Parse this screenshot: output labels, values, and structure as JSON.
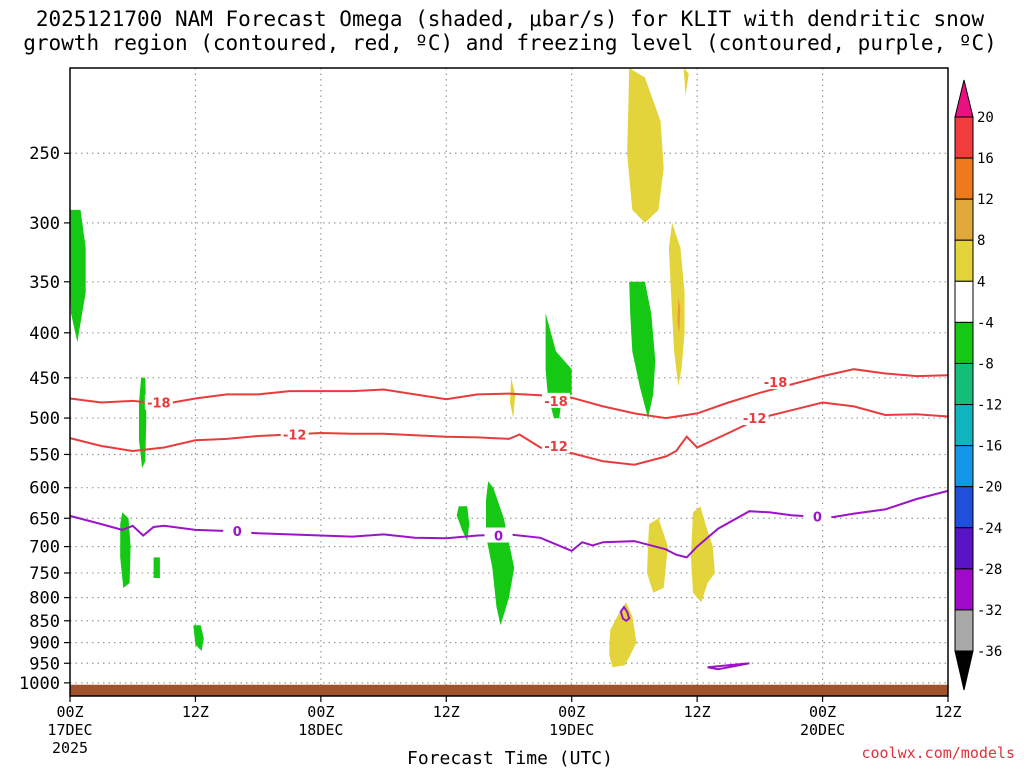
{
  "title": {
    "line1": "2025121700 NAM Forecast Omega (shaded, μbar/s) for KLIT with dendritic snow",
    "line2": "growth region (contoured, red, ºC) and freezing level (contoured, purple, ºC)"
  },
  "credit": "coolwx.com/models",
  "chart_data": {
    "type": "contour",
    "xlabel": "Forecast Time (UTC)",
    "x_range_hours": [
      0,
      84
    ],
    "x_ticks": [
      {
        "hour": 0,
        "line1": "00Z",
        "line2": "17DEC",
        "line3": "2025"
      },
      {
        "hour": 12,
        "line1": "12Z",
        "line2": "",
        "line3": ""
      },
      {
        "hour": 24,
        "line1": "00Z",
        "line2": "18DEC",
        "line3": ""
      },
      {
        "hour": 36,
        "line1": "12Z",
        "line2": "",
        "line3": ""
      },
      {
        "hour": 48,
        "line1": "00Z",
        "line2": "19DEC",
        "line3": ""
      },
      {
        "hour": 60,
        "line1": "12Z",
        "line2": "",
        "line3": ""
      },
      {
        "hour": 72,
        "line1": "00Z",
        "line2": "20DEC",
        "line3": ""
      },
      {
        "hour": 84,
        "line1": "12Z",
        "line2": "",
        "line3": ""
      }
    ],
    "y_scale": "log-pressure",
    "y_range_hpa": [
      1035,
      200
    ],
    "y_ticks": [
      250,
      300,
      350,
      400,
      450,
      500,
      550,
      600,
      650,
      700,
      750,
      800,
      850,
      900,
      950,
      1000
    ],
    "grid": true,
    "colorbar": {
      "levels": [
        "20",
        "16",
        "12",
        "8",
        "4",
        "-4",
        "-8",
        "-12",
        "-16",
        "-20",
        "-24",
        "-28",
        "-32",
        "-36"
      ],
      "colors": [
        "#e8117f",
        "#f03c3c",
        "#ef7a1e",
        "#e0a93a",
        "#e3d43c",
        "#ffffff",
        "#14c814",
        "#12be78",
        "#10b4be",
        "#1496e8",
        "#1e50dc",
        "#5a14c8",
        "#a00ac8",
        "#a8a8a8",
        "#000000"
      ]
    },
    "isotherm_18": {
      "color": "#e83c3c",
      "points": [
        [
          0,
          475
        ],
        [
          3,
          480
        ],
        [
          6,
          478
        ],
        [
          9,
          482
        ],
        [
          12,
          475
        ],
        [
          15,
          470
        ],
        [
          18,
          470
        ],
        [
          21,
          466
        ],
        [
          24,
          466
        ],
        [
          27,
          466
        ],
        [
          30,
          464
        ],
        [
          33,
          470
        ],
        [
          36,
          476
        ],
        [
          39,
          470
        ],
        [
          42,
          469
        ],
        [
          45,
          471
        ],
        [
          48,
          474
        ],
        [
          51,
          485
        ],
        [
          54,
          494
        ],
        [
          57,
          500
        ],
        [
          60,
          494
        ],
        [
          63,
          480
        ],
        [
          66,
          468
        ],
        [
          69,
          458
        ],
        [
          72,
          448
        ],
        [
          75,
          440
        ],
        [
          78,
          445
        ],
        [
          81,
          448
        ],
        [
          84,
          447
        ]
      ],
      "labels": [
        {
          "x": 8.5,
          "y": 480,
          "text": "-18"
        },
        {
          "x": 46.5,
          "y": 478,
          "text": "-18"
        },
        {
          "x": 67.5,
          "y": 455,
          "text": "-18"
        }
      ]
    },
    "isotherm_12": {
      "color": "#e83c3c",
      "points": [
        [
          0,
          527
        ],
        [
          3,
          538
        ],
        [
          6,
          545
        ],
        [
          9,
          540
        ],
        [
          12,
          530
        ],
        [
          15,
          528
        ],
        [
          18,
          524
        ],
        [
          21,
          522
        ],
        [
          24,
          520
        ],
        [
          27,
          521
        ],
        [
          30,
          521
        ],
        [
          33,
          523
        ],
        [
          36,
          525
        ],
        [
          39,
          526
        ],
        [
          42,
          528
        ],
        [
          43,
          522
        ],
        [
          45,
          540
        ],
        [
          48,
          548
        ],
        [
          51,
          560
        ],
        [
          54,
          565
        ],
        [
          57,
          553
        ],
        [
          58,
          545
        ],
        [
          59,
          525
        ],
        [
          60,
          540
        ],
        [
          63,
          520
        ],
        [
          66,
          500
        ],
        [
          69,
          490
        ],
        [
          72,
          480
        ],
        [
          75,
          485
        ],
        [
          78,
          496
        ],
        [
          81,
          495
        ],
        [
          84,
          498
        ]
      ],
      "labels": [
        {
          "x": 21.5,
          "y": 522,
          "text": "-12"
        },
        {
          "x": 46.5,
          "y": 538,
          "text": "-12"
        },
        {
          "x": 65.5,
          "y": 500,
          "text": "-12"
        }
      ]
    },
    "freezing_level": {
      "color": "#9a14c8",
      "points": [
        [
          0,
          646
        ],
        [
          3,
          660
        ],
        [
          5,
          670
        ],
        [
          6,
          663
        ],
        [
          7,
          680
        ],
        [
          8,
          665
        ],
        [
          9,
          663
        ],
        [
          12,
          670
        ],
        [
          15,
          672
        ],
        [
          18,
          676
        ],
        [
          21,
          678
        ],
        [
          24,
          680
        ],
        [
          27,
          682
        ],
        [
          30,
          678
        ],
        [
          33,
          684
        ],
        [
          36,
          685
        ],
        [
          39,
          680
        ],
        [
          42,
          678
        ],
        [
          45,
          684
        ],
        [
          47,
          700
        ],
        [
          48,
          708
        ],
        [
          49,
          692
        ],
        [
          50,
          698
        ],
        [
          51,
          692
        ],
        [
          54,
          690
        ],
        [
          57,
          705
        ],
        [
          58,
          715
        ],
        [
          59,
          720
        ],
        [
          60,
          700
        ],
        [
          62,
          668
        ],
        [
          65,
          638
        ],
        [
          67,
          640
        ],
        [
          69,
          645
        ],
        [
          71,
          647
        ],
        [
          73,
          648
        ],
        [
          75,
          642
        ],
        [
          78,
          635
        ],
        [
          81,
          618
        ],
        [
          84,
          605
        ]
      ],
      "labels": [
        {
          "x": 16,
          "y": 672,
          "text": "0"
        },
        {
          "x": 41,
          "y": 680,
          "text": "0"
        },
        {
          "x": 71.5,
          "y": 647,
          "text": "0"
        }
      ]
    },
    "freezing_level_extra": [
      {
        "points": [
          [
            53,
            820
          ],
          [
            53.3,
            830
          ],
          [
            53.5,
            845
          ],
          [
            53.2,
            850
          ],
          [
            52.9,
            845
          ],
          [
            52.7,
            830
          ],
          [
            53,
            820
          ]
        ]
      },
      {
        "points": [
          [
            61,
            960
          ],
          [
            63,
            955
          ],
          [
            65,
            950
          ],
          [
            63,
            960
          ],
          [
            62,
            965
          ],
          [
            61,
            960
          ]
        ]
      }
    ],
    "omega_shaded": [
      {
        "color": "#14c814",
        "points": [
          [
            0,
            290
          ],
          [
            1,
            290
          ],
          [
            1.5,
            320
          ],
          [
            1.5,
            360
          ],
          [
            1,
            390
          ],
          [
            0.7,
            410
          ],
          [
            0.1,
            380
          ],
          [
            0,
            350
          ]
        ]
      },
      {
        "color": "#14c814",
        "points": [
          [
            6.8,
            450
          ],
          [
            7.2,
            450
          ],
          [
            7.3,
            500
          ],
          [
            7.2,
            560
          ],
          [
            6.9,
            570
          ],
          [
            6.6,
            530
          ],
          [
            6.6,
            480
          ]
        ]
      },
      {
        "color": "#14c814",
        "points": [
          [
            5,
            640
          ],
          [
            5.6,
            650
          ],
          [
            5.8,
            700
          ],
          [
            5.7,
            770
          ],
          [
            5.1,
            780
          ],
          [
            4.8,
            720
          ],
          [
            4.8,
            660
          ]
        ]
      },
      {
        "color": "#14c814",
        "points": [
          [
            8,
            720
          ],
          [
            8.6,
            720
          ],
          [
            8.6,
            760
          ],
          [
            8,
            760
          ]
        ]
      },
      {
        "color": "#14c814",
        "points": [
          [
            11.8,
            860
          ],
          [
            12.5,
            860
          ],
          [
            12.8,
            890
          ],
          [
            12.6,
            920
          ],
          [
            12,
            905
          ]
        ]
      },
      {
        "color": "#14c814",
        "points": [
          [
            37.2,
            630
          ],
          [
            38,
            630
          ],
          [
            38.2,
            660
          ],
          [
            38,
            690
          ],
          [
            37.5,
            670
          ],
          [
            37,
            645
          ]
        ]
      },
      {
        "color": "#14c814",
        "points": [
          [
            40,
            590
          ],
          [
            40.5,
            600
          ],
          [
            41.5,
            650
          ],
          [
            42.5,
            740
          ],
          [
            42,
            800
          ],
          [
            41.2,
            860
          ],
          [
            40.8,
            820
          ],
          [
            40.4,
            740
          ],
          [
            39.8,
            680
          ],
          [
            39.8,
            620
          ]
        ]
      },
      {
        "color": "#14c814",
        "points": [
          [
            45.5,
            380
          ],
          [
            46.5,
            420
          ],
          [
            48,
            440
          ],
          [
            48,
            470
          ],
          [
            47,
            480
          ],
          [
            46.8,
            500
          ],
          [
            46.3,
            500
          ],
          [
            45.7,
            470
          ],
          [
            45.5,
            440
          ]
        ]
      },
      {
        "color": "#14c814",
        "points": [
          [
            53.5,
            350
          ],
          [
            55,
            350
          ],
          [
            55.6,
            380
          ],
          [
            56,
            430
          ],
          [
            55.8,
            470
          ],
          [
            55.3,
            500
          ],
          [
            54.5,
            460
          ],
          [
            53.8,
            420
          ],
          [
            53.6,
            380
          ]
        ]
      },
      {
        "color": "#e3d43c",
        "points": [
          [
            42.2,
            450
          ],
          [
            42.6,
            470
          ],
          [
            42.4,
            500
          ],
          [
            42.1,
            480
          ]
        ]
      },
      {
        "color": "#e3d43c",
        "points": [
          [
            53.5,
            200
          ],
          [
            55,
            205
          ],
          [
            56.5,
            230
          ],
          [
            56.8,
            260
          ],
          [
            56.3,
            290
          ],
          [
            55,
            300
          ],
          [
            53.8,
            290
          ],
          [
            53.3,
            250
          ],
          [
            53.4,
            225
          ]
        ]
      },
      {
        "color": "#e3d43c",
        "points": [
          [
            58.7,
            200
          ],
          [
            59.2,
            203
          ],
          [
            58.9,
            215
          ]
        ]
      },
      {
        "color": "#e3d43c",
        "points": [
          [
            57.6,
            300
          ],
          [
            58.4,
            320
          ],
          [
            58.8,
            360
          ],
          [
            58.8,
            400
          ],
          [
            58.5,
            440
          ],
          [
            58.2,
            460
          ],
          [
            57.8,
            420
          ],
          [
            57.5,
            360
          ],
          [
            57.3,
            320
          ]
        ]
      },
      {
        "color": "#e3d43c",
        "points": [
          [
            55.4,
            660
          ],
          [
            56.3,
            650
          ],
          [
            57.2,
            700
          ],
          [
            56.8,
            780
          ],
          [
            55.8,
            790
          ],
          [
            55.2,
            750
          ],
          [
            55.3,
            700
          ]
        ]
      },
      {
        "color": "#e3d43c",
        "points": [
          [
            59.6,
            640
          ],
          [
            60.3,
            630
          ],
          [
            60.8,
            660
          ],
          [
            61.5,
            700
          ],
          [
            61.7,
            750
          ],
          [
            61,
            770
          ],
          [
            60.4,
            810
          ],
          [
            59.6,
            790
          ],
          [
            59.4,
            720
          ],
          [
            59.5,
            680
          ]
        ]
      },
      {
        "color": "#e3d43c",
        "points": [
          [
            51.7,
            870
          ],
          [
            52.6,
            830
          ],
          [
            53.2,
            810
          ],
          [
            53.8,
            840
          ],
          [
            54.2,
            900
          ],
          [
            53.6,
            930
          ],
          [
            53.1,
            955
          ],
          [
            51.9,
            960
          ],
          [
            51.6,
            930
          ],
          [
            51.6,
            900
          ]
        ]
      },
      {
        "color": "#ef9a3a",
        "points": [
          [
            58.2,
            365
          ],
          [
            58.4,
            375
          ],
          [
            58.3,
            400
          ],
          [
            58.1,
            390
          ]
        ]
      }
    ],
    "ground": {
      "color": "#a0522d",
      "top_hpa": 1005
    }
  },
  "labels": {
    "xlabel": "Forecast Time (UTC)"
  }
}
